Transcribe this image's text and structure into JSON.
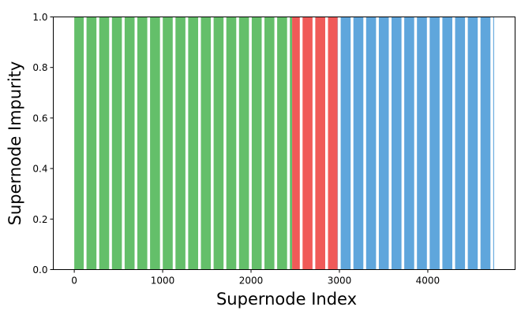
{
  "chart_data": {
    "type": "bar",
    "title": "",
    "xlabel": "Supernode Index",
    "ylabel": "Supernode Impurity",
    "xlim": [
      -237.5,
      4987.5
    ],
    "ylim": [
      0,
      1.0
    ],
    "xticks": [
      0,
      1000,
      2000,
      3000,
      4000
    ],
    "xtick_labels": [
      "0",
      "1000",
      "2000",
      "3000",
      "4000"
    ],
    "yticks": [
      0,
      0.2,
      0.4,
      0.6,
      0.8,
      1.0
    ],
    "ytick_labels": [
      "0.0",
      "0.2",
      "0.4",
      "0.6",
      "0.8",
      "1.0"
    ],
    "grid": false,
    "series": [
      {
        "index_range": [
          0,
          2465
        ],
        "impurity": 1.0,
        "color": "#64bf6a"
      },
      {
        "index_range": [
          2465,
          2980
        ],
        "impurity": 1.0,
        "color": "#f05a58"
      },
      {
        "index_range": [
          2980,
          4750
        ],
        "impurity": 1.0,
        "color": "#5fa6dc"
      }
    ]
  }
}
